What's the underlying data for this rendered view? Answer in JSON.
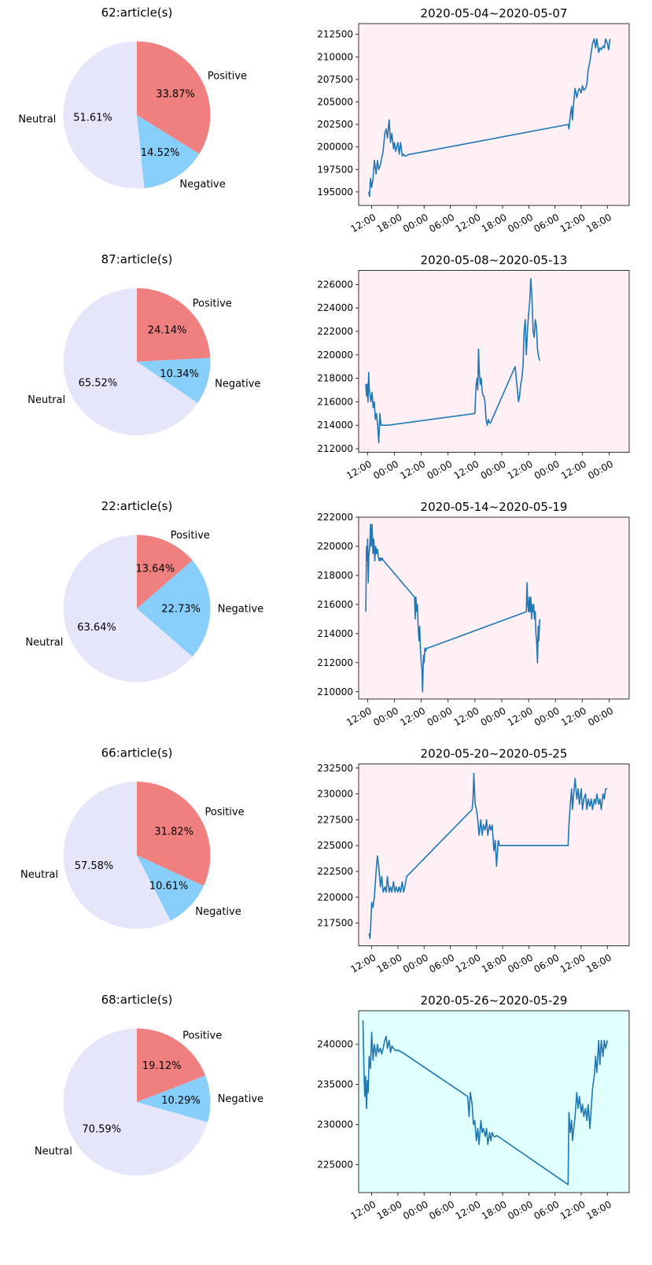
{
  "chart_data": [
    {
      "type": "pie",
      "title": "62:article(s)",
      "slices": [
        {
          "label": "Neutral",
          "value": 51.61,
          "pct": "51.61%",
          "color": "#e6e6fa"
        },
        {
          "label": "Negative",
          "value": 14.52,
          "pct": "14.52%",
          "color": "#87cefa"
        },
        {
          "label": "Positive",
          "value": 33.87,
          "pct": "33.87%",
          "color": "#f08080"
        }
      ]
    },
    {
      "type": "line",
      "title": "2020-05-04~2020-05-07",
      "background": "#fff0f5",
      "line_color": "#1f77b4",
      "ylim": [
        193500,
        213700
      ],
      "yticks": [
        195000,
        197500,
        200000,
        202500,
        205000,
        207500,
        210000,
        212500
      ],
      "ytick_labels": [
        "195000",
        "197500",
        "200000",
        "202500",
        "205000",
        "207500",
        "210000",
        "212500"
      ],
      "xticks": [
        0,
        6,
        12,
        18,
        24,
        30,
        36,
        42,
        48,
        54
      ],
      "xtick_labels": [
        "12:00",
        "18:00",
        "00:00",
        "06:00",
        "12:00",
        "18:00",
        "00:00",
        "06:00",
        "12:00",
        "18:00"
      ],
      "xlim": [
        -3,
        59
      ],
      "x": [
        -0.7,
        -0.5,
        -0.3,
        0,
        0.3,
        0.6,
        1,
        1.3,
        1.6,
        2,
        2.3,
        2.6,
        3,
        3.3,
        3.6,
        4,
        4.3,
        4.6,
        5,
        5.2,
        5.5,
        6,
        6.3,
        6.6,
        7,
        7.3,
        7.6,
        8,
        8.3,
        8.6,
        9,
        45,
        45.2,
        45.5,
        45.8,
        46,
        46.3,
        46.6,
        47,
        47.3,
        47.6,
        48,
        48.3,
        48.6,
        49,
        49.3,
        49.6,
        50,
        50.3,
        50.6,
        51,
        51.3,
        51.6,
        52,
        52.3,
        52.6,
        53,
        53.3,
        53.6,
        54,
        54.3,
        54.6
      ],
      "y": [
        195000,
        194500,
        196500,
        195500,
        196500,
        198500,
        197000,
        198500,
        197500,
        198000,
        198800,
        199500,
        201500,
        202000,
        201000,
        203000,
        200500,
        201500,
        199800,
        200500,
        199500,
        200500,
        199200,
        200500,
        199000,
        199200,
        199000,
        199000,
        199100,
        199200,
        199200,
        202500,
        202000,
        203500,
        204500,
        203000,
        205000,
        206500,
        205500,
        206200,
        206500,
        206000,
        206800,
        206300,
        206500,
        207000,
        208500,
        209500,
        210500,
        211500,
        212000,
        211000,
        212000,
        210500,
        211000,
        210800,
        211200,
        211000,
        212000,
        211500,
        210800,
        212000
      ]
    },
    {
      "type": "pie",
      "title": "87:article(s)",
      "slices": [
        {
          "label": "Neutral",
          "value": 65.52,
          "pct": "65.52%",
          "color": "#e6e6fa"
        },
        {
          "label": "Negative",
          "value": 10.34,
          "pct": "10.34%",
          "color": "#87cefa"
        },
        {
          "label": "Positive",
          "value": 24.14,
          "pct": "24.14%",
          "color": "#f08080"
        }
      ]
    },
    {
      "type": "line",
      "title": "2020-05-08~2020-05-13",
      "background": "#fff0f5",
      "line_color": "#1f77b4",
      "ylim": [
        211700,
        227200
      ],
      "yticks": [
        212000,
        214000,
        216000,
        218000,
        220000,
        222000,
        224000,
        226000
      ],
      "ytick_labels": [
        "212000",
        "214000",
        "216000",
        "218000",
        "220000",
        "222000",
        "224000",
        "226000"
      ],
      "xticks": [
        0,
        12,
        24,
        36,
        48,
        60,
        72,
        84,
        96,
        108
      ],
      "xtick_labels": [
        "12:00",
        "00:00",
        "12:00",
        "00:00",
        "12:00",
        "00:00",
        "12:00",
        "00:00",
        "12:00",
        "00:00"
      ],
      "xlim": [
        -4,
        117
      ],
      "x": [
        -0.8,
        -0.5,
        -0.2,
        0.2,
        0.5,
        0.8,
        1.2,
        1.5,
        2,
        2.5,
        3,
        3.5,
        4,
        4.5,
        5,
        5.5,
        6,
        6.5,
        7,
        7.5,
        8,
        8.5,
        9,
        48,
        48.3,
        48.6,
        49,
        49.3,
        49.6,
        50,
        50.4,
        50.8,
        51.2,
        51.6,
        52,
        52.5,
        53,
        53.5,
        54,
        54.5,
        55,
        66,
        66.5,
        67,
        67.5,
        68,
        68.5,
        69,
        69.5,
        70,
        70.5,
        71,
        71.5,
        72,
        72.5,
        73,
        73.5,
        74,
        74.5,
        75,
        75.5,
        76,
        76.5,
        77
      ],
      "y": [
        217500,
        216500,
        217500,
        216000,
        218500,
        217000,
        216500,
        216000,
        216800,
        215500,
        216000,
        214500,
        215000,
        214000,
        212500,
        215000,
        214000,
        214000,
        214000,
        214000,
        214000,
        214000,
        214000,
        215000,
        216500,
        217500,
        218000,
        217000,
        220500,
        218500,
        217500,
        218000,
        217000,
        216500,
        216500,
        216000,
        214500,
        214000,
        214500,
        214200,
        214200,
        219000,
        218000,
        217000,
        216000,
        216500,
        217500,
        218000,
        219000,
        222000,
        223000,
        220000,
        222000,
        223500,
        224500,
        226500,
        225000,
        222000,
        221500,
        223000,
        222500,
        220500,
        219800,
        219500
      ]
    },
    {
      "type": "pie",
      "title": "22:article(s)",
      "slices": [
        {
          "label": "Neutral",
          "value": 63.64,
          "pct": "63.64%",
          "color": "#e6e6fa"
        },
        {
          "label": "Negative",
          "value": 22.73,
          "pct": "22.73%",
          "color": "#87cefa"
        },
        {
          "label": "Positive",
          "value": 13.64,
          "pct": "13.64%",
          "color": "#f08080"
        }
      ]
    },
    {
      "type": "line",
      "title": "2020-05-14~2020-05-19",
      "background": "#fff0f5",
      "line_color": "#1f77b4",
      "ylim": [
        209500,
        222000
      ],
      "yticks": [
        210000,
        212000,
        214000,
        216000,
        218000,
        220000,
        222000
      ],
      "ytick_labels": [
        "210000",
        "212000",
        "214000",
        "216000",
        "218000",
        "220000",
        "222000"
      ],
      "xticks": [
        0,
        12,
        24,
        36,
        48,
        60,
        72,
        84,
        96,
        108
      ],
      "xtick_labels": [
        "12:00",
        "00:00",
        "12:00",
        "00:00",
        "12:00",
        "00:00",
        "12:00",
        "00:00",
        "12:00",
        "00:00"
      ],
      "xlim": [
        -4,
        117
      ],
      "x": [
        -0.8,
        -0.5,
        -0.2,
        0,
        0.3,
        0.6,
        1,
        1.3,
        1.6,
        2,
        2.4,
        2.8,
        3.2,
        3.6,
        4,
        4.4,
        4.8,
        5.2,
        5.6,
        6,
        6.4,
        6.8,
        7.2,
        21,
        21.3,
        21.6,
        22,
        22.3,
        22.6,
        23,
        23.3,
        23.6,
        24,
        24.3,
        24.6,
        25,
        25.3,
        25.6,
        26,
        26.5,
        27,
        71,
        71.3,
        71.6,
        72,
        72.3,
        72.6,
        73,
        73.3,
        73.6,
        74,
        74.3,
        74.6,
        75,
        75.3,
        75.6,
        76,
        76.3,
        76.6,
        77
      ],
      "y": [
        215500,
        220000,
        219000,
        220500,
        217500,
        219500,
        220000,
        221500,
        220000,
        221500,
        219500,
        220500,
        219000,
        220000,
        219500,
        219800,
        219300,
        219000,
        219200,
        219000,
        219200,
        219100,
        219000,
        216500,
        215000,
        216500,
        215500,
        216000,
        214500,
        213500,
        214500,
        213000,
        212000,
        211500,
        210000,
        212500,
        212000,
        213000,
        212800,
        213000,
        213000,
        215500,
        217500,
        216000,
        215500,
        216500,
        215500,
        216500,
        215000,
        216000,
        215500,
        216000,
        215000,
        215500,
        214000,
        213500,
        212000,
        214500,
        213500,
        215000
      ]
    },
    {
      "type": "pie",
      "title": "66:article(s)",
      "slices": [
        {
          "label": "Neutral",
          "value": 57.58,
          "pct": "57.58%",
          "color": "#e6e6fa"
        },
        {
          "label": "Negative",
          "value": 10.61,
          "pct": "10.61%",
          "color": "#87cefa"
        },
        {
          "label": "Positive",
          "value": 31.82,
          "pct": "31.82%",
          "color": "#f08080"
        }
      ]
    },
    {
      "type": "line",
      "title": "2020-05-20~2020-05-25",
      "background": "#fff0f5",
      "line_color": "#1f77b4",
      "ylim": [
        215300,
        232900
      ],
      "yticks": [
        217500,
        220000,
        222500,
        225000,
        227500,
        230000,
        232500
      ],
      "ytick_labels": [
        "217500",
        "220000",
        "222500",
        "225000",
        "227500",
        "230000",
        "232500"
      ],
      "xticks": [
        0,
        6,
        12,
        18,
        24,
        30,
        36,
        42,
        48,
        54
      ],
      "xtick_labels": [
        "12:00",
        "18:00",
        "00:00",
        "06:00",
        "12:00",
        "18:00",
        "00:00",
        "06:00",
        "12:00",
        "18:00"
      ],
      "xlim": [
        -3,
        59
      ],
      "x": [
        -0.6,
        -0.4,
        -0.2,
        0,
        0.3,
        0.6,
        1,
        1.3,
        1.6,
        2,
        2.3,
        2.6,
        3,
        3.3,
        3.6,
        4,
        4.3,
        4.6,
        5,
        5.3,
        5.6,
        6,
        6.3,
        6.6,
        7,
        7.3,
        7.6,
        8,
        23,
        23.2,
        23.4,
        23.7,
        24,
        24.3,
        24.6,
        25,
        25.3,
        25.6,
        26,
        26.3,
        26.6,
        27,
        27.3,
        27.6,
        28,
        28.3,
        28.6,
        29,
        29.3,
        29.6,
        30,
        45,
        45.2,
        45.5,
        45.8,
        46,
        46.3,
        46.6,
        47,
        47.3,
        47.6,
        48,
        48.3,
        48.6,
        49,
        49.3,
        49.6,
        50,
        50.3,
        50.6,
        51,
        51.3,
        51.6,
        52,
        52.3,
        52.6,
        53,
        53.3,
        53.6,
        54
      ],
      "y": [
        216500,
        216000,
        217500,
        219500,
        219000,
        220000,
        222500,
        224000,
        223000,
        221000,
        222000,
        220500,
        221000,
        220500,
        222000,
        220500,
        221000,
        220500,
        221500,
        220500,
        221000,
        220500,
        221000,
        220500,
        221500,
        220500,
        221000,
        222000,
        228500,
        229500,
        232000,
        229000,
        228500,
        227500,
        226000,
        227500,
        226000,
        227000,
        226500,
        227500,
        226000,
        227000,
        226500,
        227000,
        224500,
        225500,
        223000,
        225500,
        225000,
        225000,
        225000,
        225000,
        227000,
        229000,
        230500,
        228500,
        230000,
        231500,
        229500,
        230500,
        229000,
        230500,
        228500,
        229500,
        230000,
        228500,
        229500,
        228800,
        229500,
        228500,
        229500,
        229000,
        230000,
        229000,
        229500,
        228500,
        230000,
        229500,
        230500,
        230500
      ]
    },
    {
      "type": "pie",
      "title": "68:article(s)",
      "slices": [
        {
          "label": "Neutral",
          "value": 70.59,
          "pct": "70.59%",
          "color": "#e6e6fa"
        },
        {
          "label": "Negative",
          "value": 10.29,
          "pct": "10.29%",
          "color": "#87cefa"
        },
        {
          "label": "Positive",
          "value": 19.12,
          "pct": "19.12%",
          "color": "#f08080"
        }
      ]
    },
    {
      "type": "line",
      "title": "2020-05-26~2020-05-29",
      "background": "#e0ffff",
      "line_color": "#1f77b4",
      "ylim": [
        221500,
        244200
      ],
      "yticks": [
        225000,
        230000,
        235000,
        240000
      ],
      "ytick_labels": [
        "225000",
        "230000",
        "235000",
        "240000"
      ],
      "xticks": [
        0,
        6,
        12,
        18,
        24,
        30,
        36,
        42,
        48,
        54
      ],
      "xtick_labels": [
        "12:00",
        "18:00",
        "00:00",
        "06:00",
        "12:00",
        "18:00",
        "00:00",
        "06:00",
        "12:00",
        "18:00"
      ],
      "xlim": [
        -3,
        59
      ],
      "x": [
        -2,
        -1.8,
        -1.6,
        -1.4,
        -1.2,
        -1,
        -0.8,
        -0.6,
        -0.3,
        0,
        0.3,
        0.6,
        1,
        1.3,
        1.6,
        2,
        2.3,
        2.6,
        3,
        3.3,
        3.6,
        4,
        4.3,
        4.6,
        5,
        5.3,
        5.6,
        6,
        6.3,
        6.6,
        7,
        22,
        22.3,
        22.6,
        23,
        23.3,
        23.6,
        24,
        24.3,
        24.6,
        25,
        25.3,
        25.6,
        26,
        26.3,
        26.6,
        27,
        27.3,
        27.6,
        28,
        28.3,
        28.6,
        29,
        45,
        45.2,
        45.5,
        45.8,
        46,
        46.3,
        46.6,
        47,
        47.3,
        47.6,
        48,
        48.3,
        48.6,
        49,
        49.3,
        49.6,
        50,
        50.3,
        50.6,
        51,
        51.3,
        51.6,
        52,
        52.3,
        52.6,
        53,
        53.3,
        53.6,
        54
      ],
      "y": [
        243000,
        237000,
        233500,
        236000,
        232000,
        235500,
        234000,
        238500,
        237000,
        241500,
        238000,
        240000,
        238500,
        240000,
        239000,
        239500,
        238800,
        239500,
        240500,
        241000,
        239500,
        240500,
        239000,
        239800,
        239500,
        239300,
        239200,
        239300,
        239200,
        239100,
        239000,
        233500,
        231000,
        234000,
        232500,
        230000,
        230500,
        228000,
        229500,
        227500,
        230500,
        229000,
        229500,
        228500,
        229500,
        227500,
        229000,
        228000,
        229000,
        228500,
        228500,
        228600,
        228500,
        222500,
        231500,
        229000,
        230500,
        228000,
        229500,
        231000,
        234000,
        232000,
        233500,
        231500,
        232500,
        231000,
        232000,
        230500,
        232500,
        229500,
        232000,
        234500,
        236000,
        238500,
        236500,
        240500,
        237500,
        240500,
        238500,
        240500,
        239500,
        240500
      ]
    }
  ]
}
